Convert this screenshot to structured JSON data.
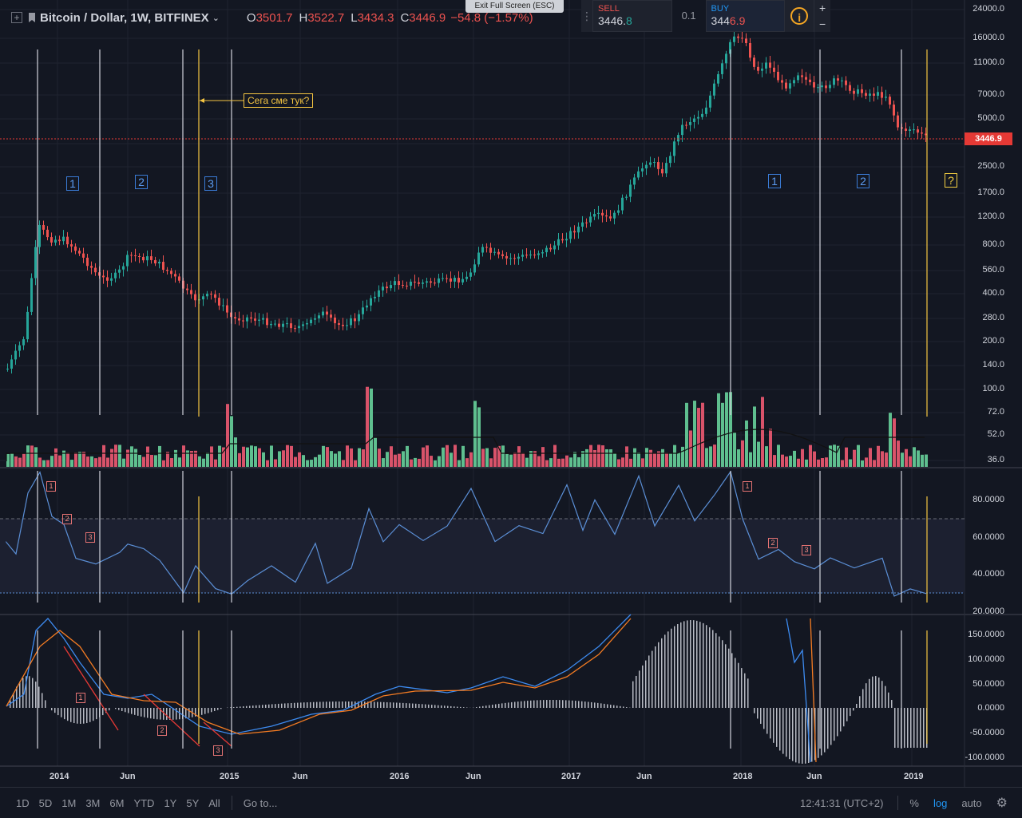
{
  "header": {
    "symbol": "Bitcoin / Dollar, 1W, BITFINEX",
    "open_label": "O",
    "open": "3501.7",
    "high_label": "H",
    "high": "3522.7",
    "low_label": "L",
    "low": "3434.3",
    "close_label": "C",
    "close": "3446.9",
    "change": "−54.8 (−1.57%)"
  },
  "exit_fullscreen": "Exit Full Screen (ESC)",
  "trade": {
    "sell_label": "SELL",
    "sell_main": "3446.",
    "sell_tail": "8",
    "spread": "0.1",
    "buy_label": "BUY",
    "buy_main": "344",
    "buy_tail": "6.9",
    "info_icon": "i",
    "plus": "+",
    "minus": "−"
  },
  "price_axis": [
    "24000.0",
    "16000.0",
    "11000.0",
    "7000.0",
    "5000.0",
    "3446.9",
    "2500.0",
    "1700.0",
    "1200.0",
    "800.0",
    "560.0",
    "400.0",
    "280.0",
    "200.0",
    "140.0",
    "100.0",
    "72.0",
    "52.0",
    "36.0"
  ],
  "current_price_tag": "3446.9",
  "rsi_axis": [
    "80.0000",
    "60.0000",
    "40.0000",
    "20.0000"
  ],
  "macd_axis": [
    "150.0000",
    "100.0000",
    "50.0000",
    "0.0000",
    "-50.0000",
    "-100.0000"
  ],
  "time_axis": [
    "2014",
    "Jun",
    "2015",
    "Jun",
    "2016",
    "Jun",
    "2017",
    "Jun",
    "2018",
    "Jun",
    "2019"
  ],
  "annotation_text": "Сега сме тук?",
  "wave_labels": {
    "left": [
      "1",
      "2",
      "3"
    ],
    "right": [
      "1",
      "2"
    ],
    "question": "?",
    "rsi": [
      "1",
      "2",
      "3",
      "1",
      "2",
      "3"
    ],
    "macd": [
      "1",
      "2",
      "3"
    ]
  },
  "toolbar": {
    "timeframes": [
      "1D",
      "5D",
      "1M",
      "3M",
      "6M",
      "YTD",
      "1Y",
      "5Y",
      "All"
    ],
    "goto": "Go to...",
    "clock": "12:41:31 (UTC+2)",
    "percent": "%",
    "log": "log",
    "auto": "auto",
    "settings_icon": "gear-icon"
  },
  "colors": {
    "bg": "#131722",
    "up": "#26a69a",
    "down": "#ef5350",
    "vol_up": "#5fbf8f",
    "vol_down": "#d9536a",
    "rsi_line": "#5b8fd6",
    "macd_line": "#3d8bf0",
    "signal_line": "#f57c22"
  }
}
